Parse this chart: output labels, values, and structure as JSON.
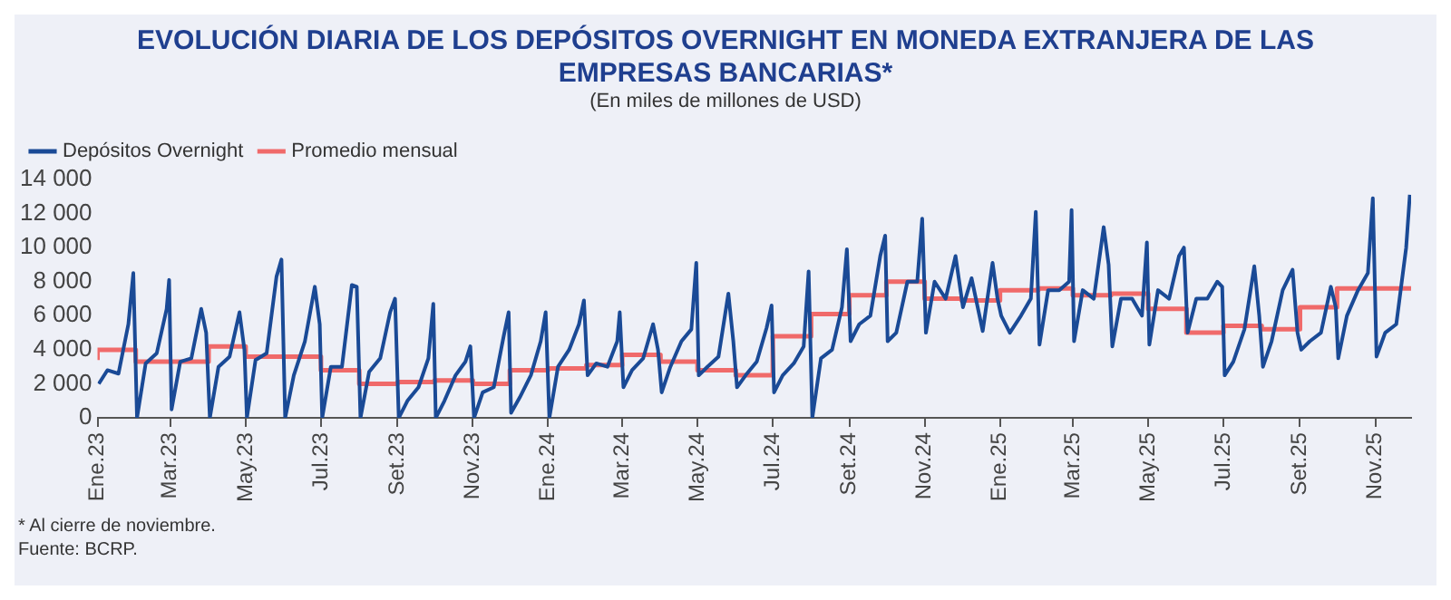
{
  "chart_data": {
    "type": "line",
    "title": "EVOLUCIÓN DIARIA DE LOS DEPÓSITOS OVERNIGHT EN MONEDA EXTRANJERA DE LAS EMPRESAS BANCARIAS*",
    "subtitle": "(En miles de millones de USD)",
    "xlim": [
      "2023-01-01",
      "2025-11-30"
    ],
    "xticks": [
      {
        "value": "2023-01-01",
        "label": "Ene.23"
      },
      {
        "value": "2023-03-01",
        "label": "Mar.23"
      },
      {
        "value": "2023-05-01",
        "label": "May.23"
      },
      {
        "value": "2023-07-01",
        "label": "Jul.23"
      },
      {
        "value": "2023-09-01",
        "label": "Set.23"
      },
      {
        "value": "2023-11-01",
        "label": "Nov.23"
      },
      {
        "value": "2024-01-01",
        "label": "Ene.24"
      },
      {
        "value": "2024-03-01",
        "label": "Mar.24"
      },
      {
        "value": "2024-05-01",
        "label": "May.24"
      },
      {
        "value": "2024-07-01",
        "label": "Jul.24"
      },
      {
        "value": "2024-09-01",
        "label": "Set.24"
      },
      {
        "value": "2024-11-01",
        "label": "Nov.24"
      },
      {
        "value": "2025-01-01",
        "label": "Ene.25"
      },
      {
        "value": "2025-03-01",
        "label": "Mar.25"
      },
      {
        "value": "2025-05-01",
        "label": "May.25"
      },
      {
        "value": "2025-07-01",
        "label": "Jul.25"
      },
      {
        "value": "2025-09-01",
        "label": "Set.25"
      },
      {
        "value": "2025-11-01",
        "label": "Nov.25"
      }
    ],
    "ylim": [
      0,
      14000
    ],
    "yticks": [
      {
        "value": 0,
        "label": "0"
      },
      {
        "value": 2000,
        "label": "2 000"
      },
      {
        "value": 4000,
        "label": "4 000"
      },
      {
        "value": 6000,
        "label": "6 000"
      },
      {
        "value": 8000,
        "label": "8 000"
      },
      {
        "value": 10000,
        "label": "10 000"
      },
      {
        "value": 12000,
        "label": "12 000"
      },
      {
        "value": 14000,
        "label": "14 000"
      }
    ],
    "grid": false,
    "legend": "top left",
    "marker": "none",
    "series": [
      {
        "name": "Depósitos Overnight",
        "color": "#1a4a96",
        "x": [
          "2023-01-02",
          "2023-01-09",
          "2023-01-18",
          "2023-01-26",
          "2023-01-30",
          "2023-02-02",
          "2023-02-09",
          "2023-02-18",
          "2023-02-26",
          "2023-02-28",
          "2023-03-02",
          "2023-03-09",
          "2023-03-18",
          "2023-03-26",
          "2023-03-30",
          "2023-04-02",
          "2023-04-09",
          "2023-04-18",
          "2023-04-26",
          "2023-04-30",
          "2023-05-02",
          "2023-05-09",
          "2023-05-18",
          "2023-05-26",
          "2023-05-30",
          "2023-06-02",
          "2023-06-09",
          "2023-06-18",
          "2023-06-26",
          "2023-06-30",
          "2023-07-02",
          "2023-07-09",
          "2023-07-18",
          "2023-07-26",
          "2023-07-30",
          "2023-08-02",
          "2023-08-09",
          "2023-08-18",
          "2023-08-26",
          "2023-08-30",
          "2023-09-02",
          "2023-09-09",
          "2023-09-18",
          "2023-09-26",
          "2023-09-30",
          "2023-10-02",
          "2023-10-09",
          "2023-10-18",
          "2023-10-26",
          "2023-10-30",
          "2023-11-02",
          "2023-11-09",
          "2023-11-18",
          "2023-11-26",
          "2023-11-30",
          "2023-12-02",
          "2023-12-09",
          "2023-12-18",
          "2023-12-26",
          "2023-12-30",
          "2024-01-02",
          "2024-01-09",
          "2024-01-18",
          "2024-01-26",
          "2024-01-30",
          "2024-02-02",
          "2024-02-09",
          "2024-02-18",
          "2024-02-26",
          "2024-02-28",
          "2024-03-02",
          "2024-03-09",
          "2024-03-18",
          "2024-03-26",
          "2024-03-30",
          "2024-04-02",
          "2024-04-09",
          "2024-04-18",
          "2024-04-26",
          "2024-04-30",
          "2024-05-02",
          "2024-05-09",
          "2024-05-18",
          "2024-05-26",
          "2024-05-30",
          "2024-06-02",
          "2024-06-09",
          "2024-06-18",
          "2024-06-26",
          "2024-06-30",
          "2024-07-02",
          "2024-07-09",
          "2024-07-18",
          "2024-07-26",
          "2024-07-30",
          "2024-08-02",
          "2024-08-09",
          "2024-08-18",
          "2024-08-26",
          "2024-08-30",
          "2024-09-02",
          "2024-09-09",
          "2024-09-18",
          "2024-09-26",
          "2024-09-30",
          "2024-10-02",
          "2024-10-09",
          "2024-10-18",
          "2024-10-26",
          "2024-10-30",
          "2024-11-02",
          "2024-11-09",
          "2024-11-18",
          "2024-11-26",
          "2024-11-30",
          "2024-12-02",
          "2024-12-09",
          "2024-12-18",
          "2024-12-26",
          "2024-12-30",
          "2025-01-02",
          "2025-01-09",
          "2025-01-18",
          "2025-01-26",
          "2025-01-30",
          "2025-02-02",
          "2025-02-09",
          "2025-02-18",
          "2025-02-26",
          "2025-02-28",
          "2025-03-02",
          "2025-03-09",
          "2025-03-18",
          "2025-03-26",
          "2025-03-30",
          "2025-04-02",
          "2025-04-09",
          "2025-04-18",
          "2025-04-26",
          "2025-04-30",
          "2025-05-02",
          "2025-05-09",
          "2025-05-18",
          "2025-05-26",
          "2025-05-30",
          "2025-06-02",
          "2025-06-09",
          "2025-06-18",
          "2025-06-26",
          "2025-06-30",
          "2025-07-02",
          "2025-07-09",
          "2025-07-18",
          "2025-07-26",
          "2025-07-30",
          "2025-08-02",
          "2025-08-09",
          "2025-08-18",
          "2025-08-26",
          "2025-08-30",
          "2025-09-02",
          "2025-09-09",
          "2025-09-18",
          "2025-09-26",
          "2025-09-30",
          "2025-10-02",
          "2025-10-09",
          "2025-10-18",
          "2025-10-26",
          "2025-10-30",
          "2025-11-02",
          "2025-11-09",
          "2025-11-18",
          "2025-11-26",
          "2025-11-29"
        ],
        "values": [
          2000,
          2800,
          2600,
          5500,
          8500,
          0,
          3200,
          3800,
          6400,
          8100,
          500,
          3300,
          3500,
          6400,
          5000,
          0,
          3000,
          3600,
          6200,
          4000,
          0,
          3400,
          3800,
          8300,
          9300,
          0,
          2500,
          4500,
          7700,
          5500,
          0,
          3000,
          3000,
          7800,
          7700,
          0,
          2700,
          3500,
          6200,
          7000,
          0,
          1000,
          1800,
          3500,
          6700,
          0,
          1000,
          2500,
          3300,
          4200,
          0,
          1500,
          1800,
          4800,
          6200,
          300,
          1200,
          2500,
          4500,
          6200,
          0,
          3000,
          4000,
          5500,
          6900,
          2500,
          3200,
          3000,
          4500,
          6200,
          1800,
          2800,
          3500,
          5500,
          4000,
          1500,
          3000,
          4500,
          5200,
          9100,
          2500,
          3000,
          3600,
          7300,
          4500,
          1800,
          2500,
          3300,
          5300,
          6600,
          1500,
          2500,
          3200,
          4200,
          8600,
          0,
          3500,
          4000,
          6500,
          9900,
          4500,
          5500,
          6000,
          9500,
          10700,
          4500,
          5000,
          8000,
          8000,
          11700,
          5000,
          8000,
          7000,
          9500,
          7500,
          6500,
          8200,
          5100,
          9100,
          7000,
          6000,
          5000,
          6000,
          7000,
          12100,
          4300,
          7500,
          7500,
          8000,
          12200,
          4500,
          7500,
          7000,
          11200,
          9000,
          4200,
          7000,
          7000,
          6000,
          10300,
          4300,
          7500,
          7000,
          9500,
          10000,
          5000,
          7000,
          7000,
          8000,
          7700,
          2500,
          3300,
          5200,
          8900,
          6000,
          3000,
          4500,
          7500,
          8700,
          5000,
          4000,
          4500,
          5000,
          7700,
          6500,
          3500,
          6000,
          7500,
          8500,
          12900,
          3600,
          5000,
          5500,
          10000,
          13100
        ]
      },
      {
        "name": "Promedio mensual",
        "type": "step",
        "color": "#f06a6a",
        "x": [
          "2023-01-01",
          "2023-02-01",
          "2023-03-01",
          "2023-04-01",
          "2023-05-01",
          "2023-06-01",
          "2023-07-01",
          "2023-08-01",
          "2023-09-01",
          "2023-10-01",
          "2023-11-01",
          "2023-12-01",
          "2024-01-01",
          "2024-02-01",
          "2024-03-01",
          "2024-04-01",
          "2024-05-01",
          "2024-06-01",
          "2024-07-01",
          "2024-08-01",
          "2024-09-01",
          "2024-10-01",
          "2024-11-01",
          "2024-12-01",
          "2025-01-01",
          "2025-02-01",
          "2025-03-01",
          "2025-04-01",
          "2025-05-01",
          "2025-06-01",
          "2025-07-01",
          "2025-08-01",
          "2025-09-01",
          "2025-10-01",
          "2025-11-01",
          "2025-11-30"
        ],
        "values": [
          3400,
          4000,
          3300,
          3300,
          4200,
          3600,
          3600,
          2800,
          2000,
          2100,
          2200,
          2000,
          2800,
          2900,
          3100,
          3700,
          3300,
          2800,
          2500,
          4800,
          6100,
          7200,
          8000,
          7000,
          6900,
          7500,
          7600,
          7200,
          7300,
          6400,
          5000,
          5400,
          5200,
          6500,
          7600,
          7600
        ]
      }
    ],
    "annotations": [
      "* Al cierre de noviembre.",
      "Fuente: BCRP."
    ]
  }
}
